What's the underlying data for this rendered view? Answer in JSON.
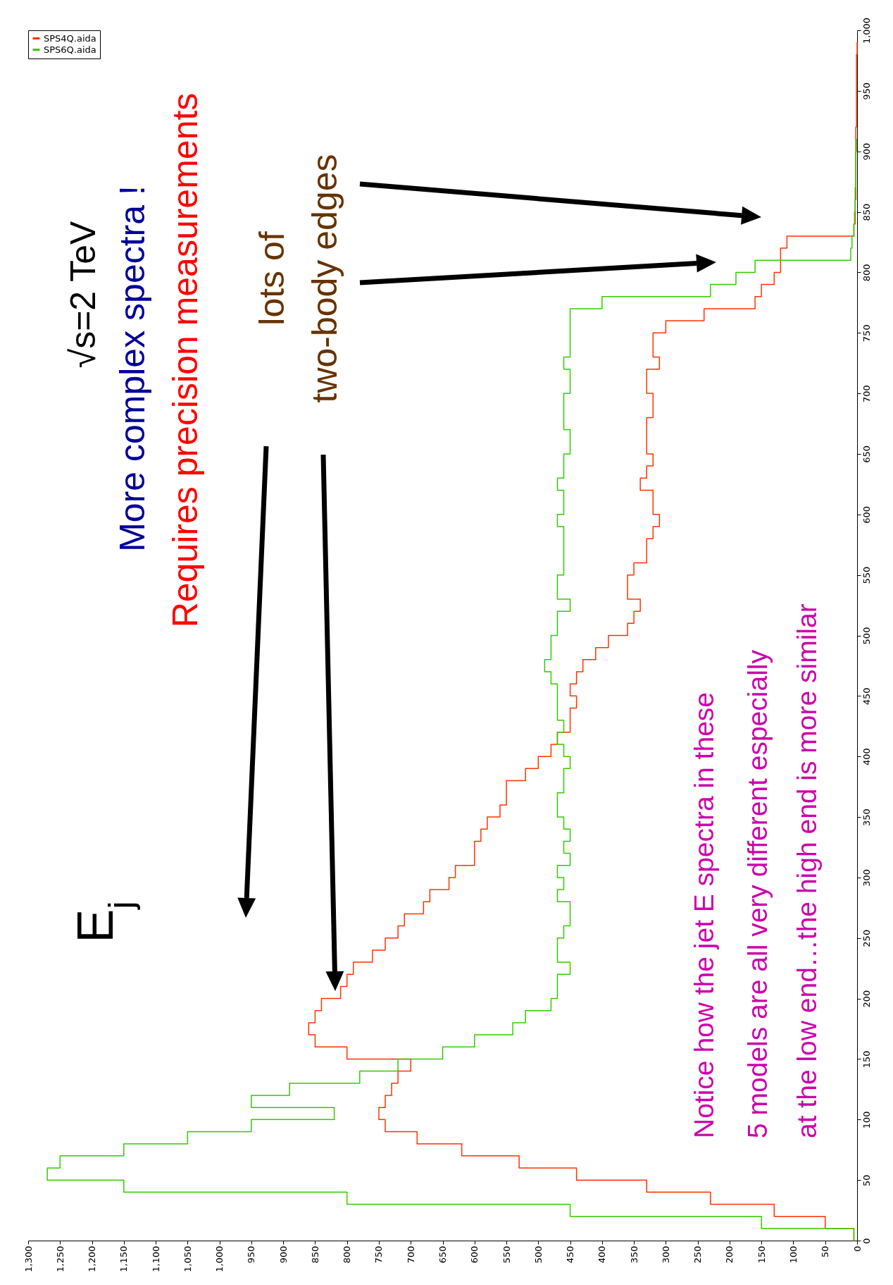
{
  "chart_data": {
    "type": "step",
    "title": "E$_{j}$",
    "annotations": [
      "√s=2 TeV",
      "More complex spectra !",
      "Requires precision measurements",
      "lots of",
      "two-body edges",
      "Notice how the jet E spectra in these",
      "5 models are all very different especially",
      "at the low end…the high end is more similar"
    ],
    "x": [
      0,
      10,
      20,
      30,
      40,
      50,
      60,
      70,
      80,
      90,
      100,
      110,
      120,
      130,
      140,
      150,
      160,
      170,
      180,
      190,
      200,
      210,
      220,
      230,
      240,
      250,
      260,
      270,
      280,
      290,
      300,
      310,
      320,
      330,
      340,
      350,
      360,
      370,
      380,
      390,
      400,
      410,
      420,
      430,
      440,
      450,
      460,
      470,
      480,
      490,
      500,
      510,
      520,
      530,
      540,
      550,
      560,
      570,
      580,
      590,
      600,
      610,
      620,
      630,
      640,
      650,
      660,
      670,
      680,
      690,
      700,
      710,
      720,
      730,
      740,
      750,
      760,
      770,
      780,
      790,
      800,
      810,
      820,
      830,
      840,
      850,
      860,
      870,
      880,
      890,
      900,
      910,
      920,
      930,
      940,
      950,
      960,
      970,
      980,
      990
    ],
    "series": [
      {
        "name": "SPS4Q.aida",
        "color": "#ff3300",
        "values": [
          5,
          50,
          130,
          230,
          330,
          440,
          530,
          620,
          690,
          740,
          750,
          740,
          730,
          720,
          700,
          800,
          850,
          860,
          850,
          840,
          810,
          800,
          790,
          760,
          740,
          720,
          710,
          680,
          670,
          640,
          630,
          600,
          600,
          590,
          580,
          560,
          550,
          550,
          520,
          500,
          480,
          470,
          450,
          450,
          440,
          450,
          440,
          430,
          410,
          390,
          360,
          350,
          340,
          360,
          360,
          350,
          330,
          330,
          320,
          310,
          320,
          320,
          340,
          330,
          320,
          330,
          330,
          330,
          320,
          320,
          330,
          330,
          310,
          320,
          320,
          300,
          240,
          160,
          150,
          130,
          120,
          120,
          110,
          5,
          3,
          3,
          2,
          2,
          2,
          2,
          2,
          2,
          1,
          1,
          1,
          1,
          1,
          1,
          0,
          0
        ]
      },
      {
        "name": "SPS6Q.aida",
        "color": "#33cc00",
        "values": [
          5,
          150,
          450,
          800,
          1150,
          1270,
          1250,
          1150,
          1050,
          950,
          820,
          950,
          890,
          780,
          720,
          650,
          600,
          540,
          520,
          480,
          470,
          470,
          450,
          470,
          470,
          460,
          450,
          450,
          470,
          460,
          470,
          450,
          460,
          450,
          460,
          470,
          470,
          460,
          460,
          450,
          460,
          470,
          460,
          470,
          470,
          470,
          480,
          490,
          480,
          480,
          470,
          470,
          450,
          470,
          470,
          460,
          460,
          460,
          460,
          470,
          460,
          460,
          470,
          460,
          460,
          450,
          450,
          460,
          460,
          460,
          450,
          450,
          460,
          450,
          450,
          450,
          450,
          400,
          230,
          190,
          160,
          10,
          8,
          5,
          4,
          3,
          3,
          2,
          2,
          2,
          1,
          1,
          null,
          null,
          null,
          null,
          null,
          null,
          null,
          null
        ]
      }
    ],
    "orientation": "horizontal",
    "ylim": [
      0,
      1000
    ],
    "yticks": [
      0,
      50,
      100,
      150,
      200,
      250,
      300,
      350,
      400,
      450,
      500,
      550,
      600,
      650,
      700,
      750,
      800,
      850,
      900,
      950,
      {
        "value": 1000,
        "label": "1,000"
      }
    ],
    "xlim": [
      1300,
      0
    ],
    "xticks": [
      0,
      50,
      100,
      150,
      200,
      250,
      300,
      350,
      400,
      450,
      500,
      550,
      600,
      650,
      700,
      750,
      800,
      850,
      900,
      950,
      {
        "value": 1000,
        "label": "1,000"
      },
      {
        "value": 1050,
        "label": "1,050"
      },
      {
        "value": 1100,
        "label": "1,100"
      },
      {
        "value": 1150,
        "label": "1,150"
      },
      {
        "value": 1200,
        "label": "1,200"
      },
      {
        "value": 1250,
        "label": "1,250"
      },
      {
        "value": 1300,
        "label": "1,300"
      }
    ],
    "legend": "top left",
    "grid": false
  }
}
